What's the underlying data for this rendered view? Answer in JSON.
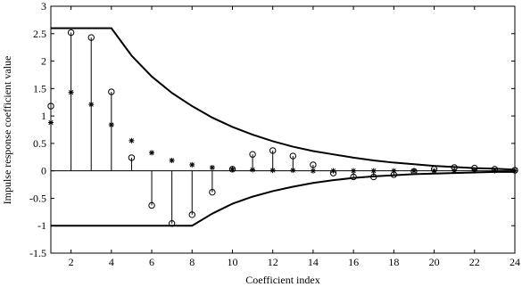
{
  "chart_data": {
    "type": "scatter",
    "xlabel": "Coefficient index",
    "ylabel": "Impulse response coefficient value",
    "xlim": [
      1,
      24
    ],
    "ylim": [
      -1.5,
      3
    ],
    "xticks": [
      2,
      4,
      6,
      8,
      10,
      12,
      14,
      16,
      18,
      20,
      22,
      24
    ],
    "yticks": [
      -1.5,
      -1,
      -0.5,
      0,
      0.5,
      1,
      1.5,
      2,
      2.5,
      3
    ],
    "ytick_labels": [
      "-1.5",
      "-1",
      "-0.5",
      "0",
      "0.5",
      "1",
      "1.5",
      "2",
      "2.5",
      "3"
    ],
    "grid": false,
    "series": [
      {
        "marker": "circle",
        "stem": true,
        "x": [
          1,
          2,
          3,
          4,
          5,
          6,
          7,
          8,
          9,
          10,
          11,
          12,
          13,
          14,
          15,
          16,
          17,
          18,
          19,
          20,
          21,
          22,
          23,
          24
        ],
        "y": [
          1.18,
          2.52,
          2.43,
          1.44,
          0.24,
          -0.63,
          -0.96,
          -0.8,
          -0.39,
          0.03,
          0.3,
          0.37,
          0.27,
          0.11,
          -0.04,
          -0.11,
          -0.11,
          -0.07,
          -0.01,
          0.03,
          0.06,
          0.05,
          0.03,
          0.01
        ]
      },
      {
        "marker": "asterisk",
        "x": [
          1,
          2,
          3,
          4,
          5,
          6,
          7,
          8,
          9,
          10,
          11,
          12,
          13,
          14,
          15,
          16,
          17,
          18,
          19,
          20,
          21,
          22,
          23,
          24
        ],
        "y": [
          0.88,
          1.43,
          1.21,
          0.84,
          0.55,
          0.33,
          0.19,
          0.11,
          0.06,
          0.03,
          0.02,
          0.01,
          0.01,
          0,
          0,
          0,
          0,
          0,
          0,
          0,
          0,
          0,
          0,
          0
        ]
      },
      {
        "style": "line",
        "x": [
          1,
          4,
          5,
          6,
          7,
          8,
          9,
          10,
          11,
          12,
          13,
          14,
          15,
          16,
          17,
          18,
          19,
          20,
          21,
          22,
          23,
          24
        ],
        "y": [
          2.6,
          2.6,
          2.1,
          1.72,
          1.42,
          1.18,
          0.97,
          0.8,
          0.66,
          0.54,
          0.44,
          0.36,
          0.3,
          0.24,
          0.19,
          0.15,
          0.12,
          0.09,
          0.07,
          0.05,
          0.04,
          0.02
        ]
      },
      {
        "style": "line",
        "x": [
          1,
          8,
          9,
          10,
          11,
          12,
          13,
          14,
          15,
          16,
          17,
          18,
          19,
          20,
          21,
          22,
          23,
          24
        ],
        "y": [
          -1.0,
          -1.0,
          -0.78,
          -0.6,
          -0.47,
          -0.37,
          -0.29,
          -0.22,
          -0.17,
          -0.13,
          -0.1,
          -0.08,
          -0.06,
          -0.05,
          -0.04,
          -0.03,
          -0.02,
          -0.02
        ]
      }
    ]
  }
}
